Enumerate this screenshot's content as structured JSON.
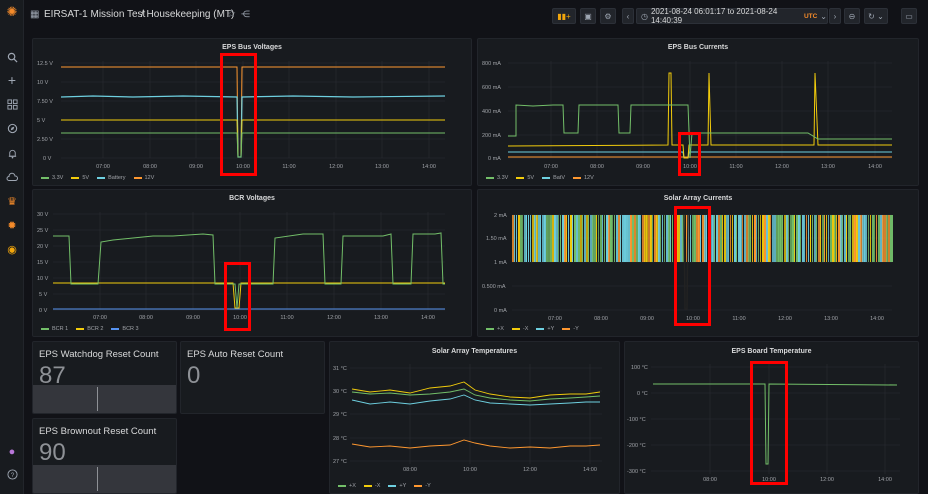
{
  "dashboard": {
    "folder": "EIRSAT-1 Mission Test",
    "title": "/ Housekeeping (MT)",
    "time_range": "2021-08-24 06:01:17 to 2021-08-24 14:40:39",
    "timezone": "UTC"
  },
  "sidebar": {
    "icons": [
      "logo-icon",
      "search-icon",
      "plus-icon",
      "dashboards-icon",
      "explore-icon",
      "alerting-icon",
      "cloud-icon",
      "plugin-icon-1",
      "plugin-icon-2",
      "plugin-icon-3",
      "avatar-icon",
      "help-icon"
    ]
  },
  "colors": {
    "green": "#73bf69",
    "yellow": "#f2cc0c",
    "blue": "#5794f2",
    "orange": "#ff9830",
    "red": "#ff0000"
  },
  "panels": {
    "bus_voltages": {
      "title": "EPS Bus Voltages",
      "yticks": [
        "12.5 V",
        "10 V",
        "7.50 V",
        "5 V",
        "2.50 V",
        "0 V"
      ],
      "xticks": [
        "07:00",
        "08:00",
        "09:00",
        "10:00",
        "11:00",
        "12:00",
        "13:00",
        "14:00"
      ],
      "legend": [
        "3.3V",
        "5V",
        "Battery",
        "12V"
      ]
    },
    "bus_currents": {
      "title": "EPS Bus Currents",
      "yticks": [
        "800 mA",
        "600 mA",
        "400 mA",
        "200 mA",
        "0 mA"
      ],
      "xticks": [
        "07:00",
        "08:00",
        "09:00",
        "10:00",
        "11:00",
        "12:00",
        "13:00",
        "14:00"
      ],
      "legend": [
        "3.3V",
        "5V",
        "BatV",
        "12V"
      ]
    },
    "bcr_voltages": {
      "title": "BCR Voltages",
      "yticks": [
        "30 V",
        "25 V",
        "20 V",
        "15 V",
        "10 V",
        "5 V",
        "0 V"
      ],
      "xticks": [
        "07:00",
        "08:00",
        "09:00",
        "10:00",
        "11:00",
        "12:00",
        "13:00",
        "14:00"
      ],
      "legend": [
        "BCR 1",
        "BCR 2",
        "BCR 3"
      ]
    },
    "solar_currents": {
      "title": "Solar Array Currents",
      "yticks": [
        "2 mA",
        "1.50 mA",
        "1 mA",
        "0.500 mA",
        "0 mA"
      ],
      "xticks": [
        "07:00",
        "08:00",
        "09:00",
        "10:00",
        "11:00",
        "12:00",
        "13:00",
        "14:00"
      ],
      "legend": [
        "+X",
        "-X",
        "+Y",
        "-Y"
      ]
    },
    "watchdog": {
      "title": "EPS Watchdog Reset Count",
      "value": "87"
    },
    "auto_reset": {
      "title": "EPS Auto Reset Count",
      "value": "0"
    },
    "brownout": {
      "title": "EPS Brownout Reset Count",
      "value": "90"
    },
    "solar_temps": {
      "title": "Solar Array Temperatures",
      "yticks": [
        "31 °C",
        "30 °C",
        "29 °C",
        "28 °C",
        "27 °C"
      ],
      "xticks": [
        "08:00",
        "10:00",
        "12:00",
        "14:00"
      ],
      "legend": [
        "+X",
        "-X",
        "+Y",
        "-Y"
      ]
    },
    "board_temp": {
      "title": "EPS Board Temperature",
      "yticks": [
        "100 °C",
        "0 °C",
        "-100 °C",
        "-200 °C",
        "-300 °C"
      ],
      "xticks": [
        "08:00",
        "10:00",
        "12:00",
        "14:00"
      ]
    }
  }
}
